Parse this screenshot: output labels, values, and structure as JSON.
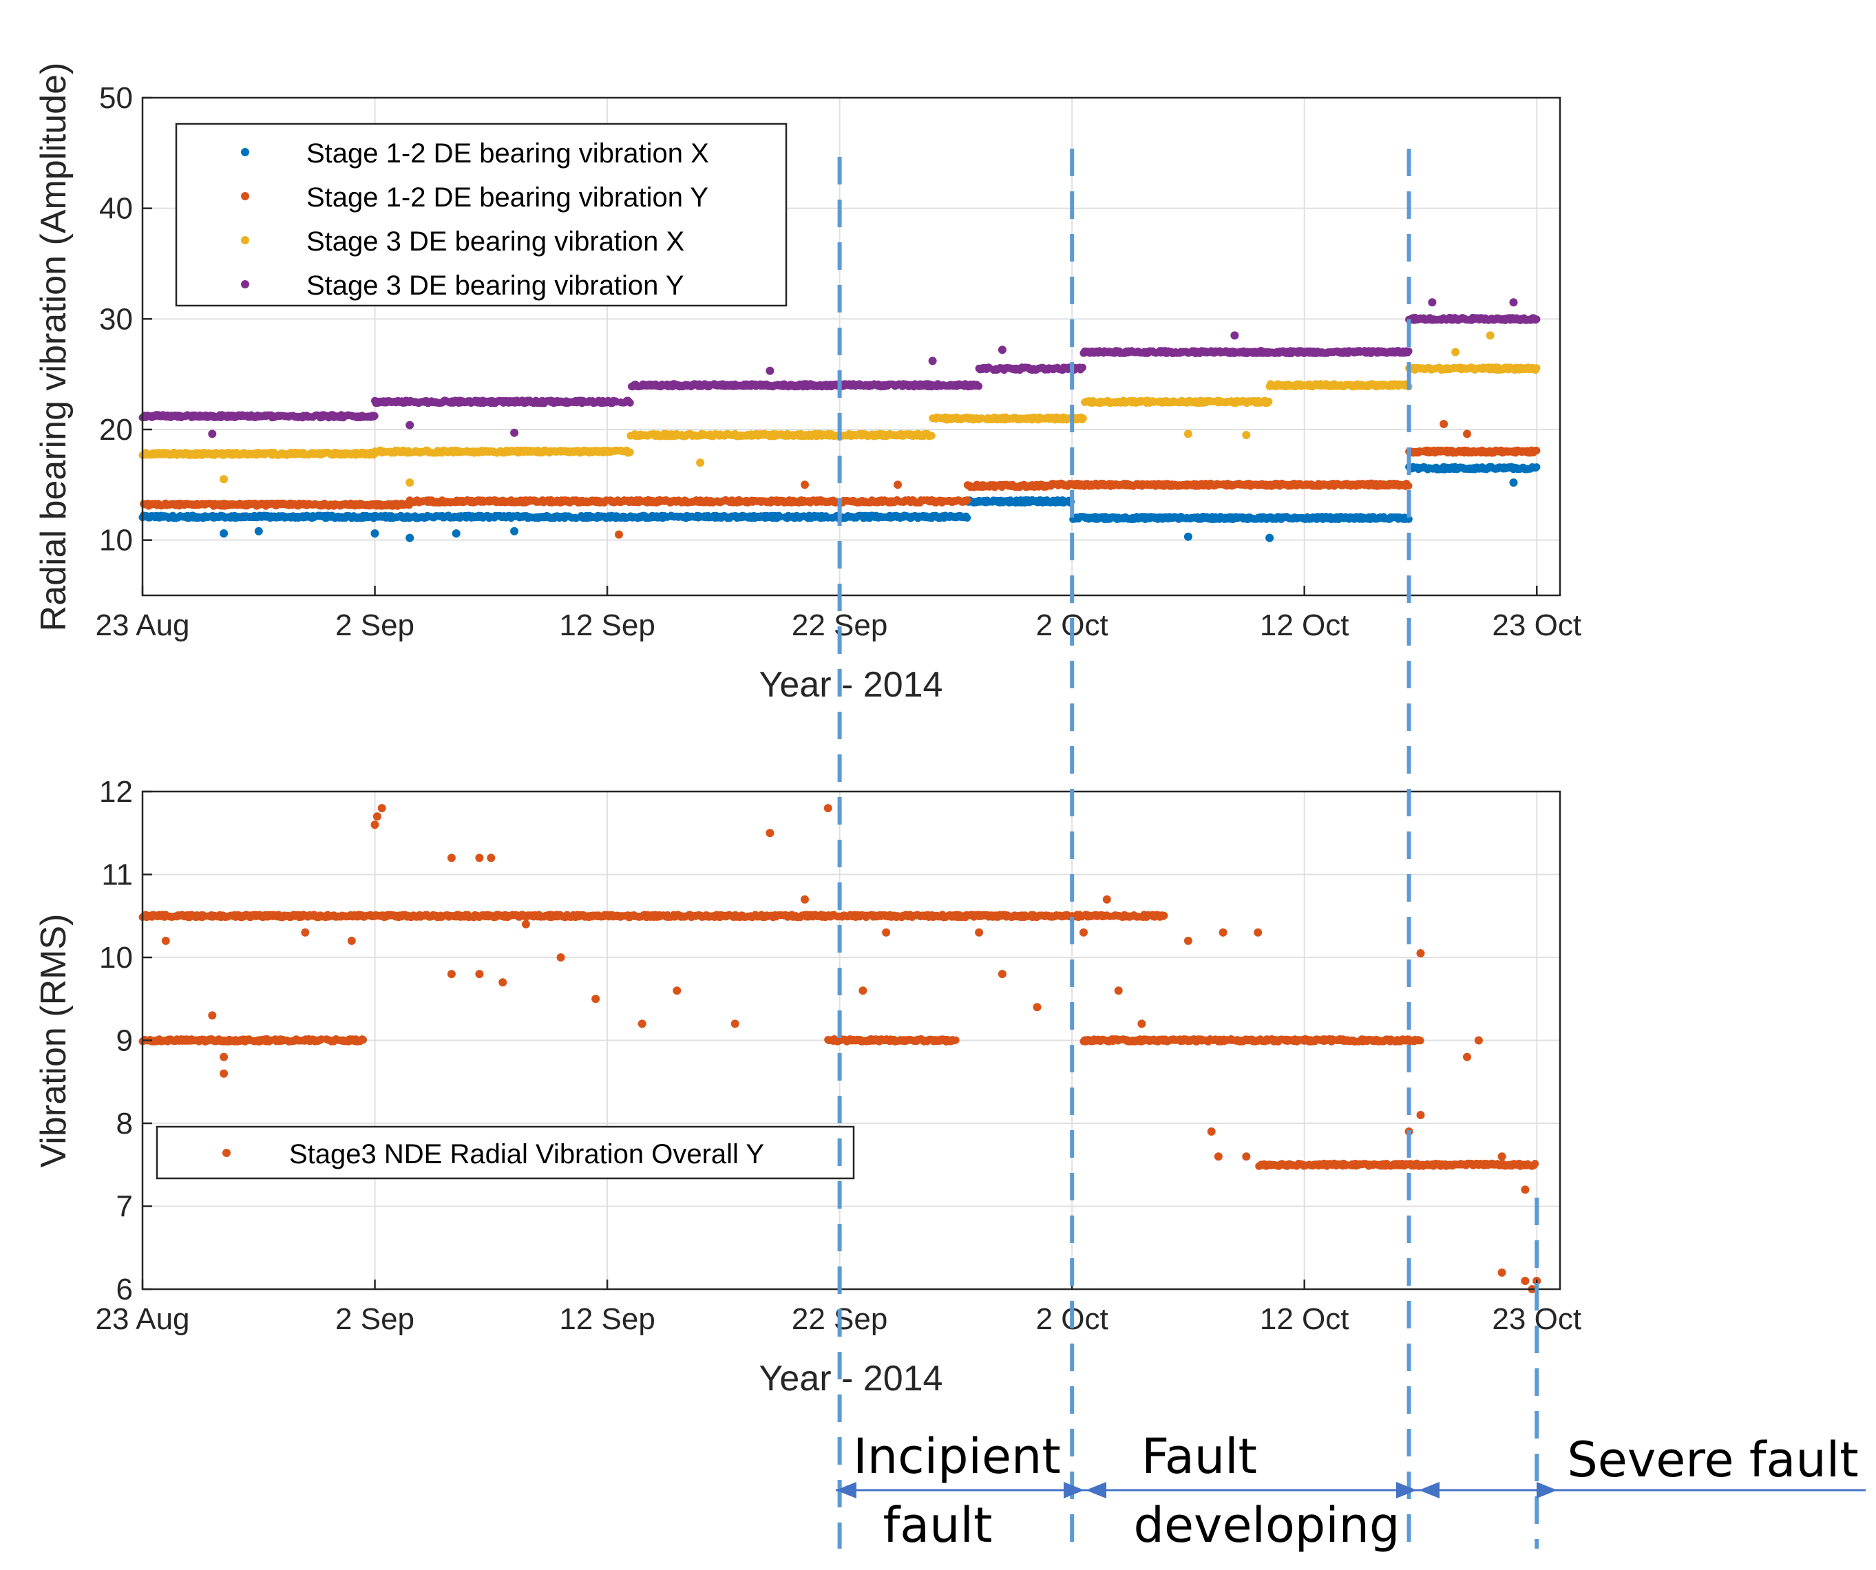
{
  "chart_data": [
    {
      "type": "scatter",
      "xlabel": "Year - 2014",
      "ylabel": "Radial bearing vibration (Amplitude)",
      "xlim": [
        0,
        61
      ],
      "ylim": [
        5,
        50
      ],
      "x_ticks": [
        {
          "label": "23 Aug",
          "value": 0
        },
        {
          "label": "2 Sep",
          "value": 10
        },
        {
          "label": "12 Sep",
          "value": 20
        },
        {
          "label": "22 Sep",
          "value": 30
        },
        {
          "label": "2 Oct",
          "value": 40
        },
        {
          "label": "12 Oct",
          "value": 50
        },
        {
          "label": "23 Oct",
          "value": 60
        }
      ],
      "y_ticks": [
        "10",
        "20",
        "30",
        "40",
        "50"
      ],
      "grid": true,
      "legend_position": "top-left",
      "series": [
        {
          "name": "Stage 1-2 DE bearing vibration X",
          "color": "#0072BD",
          "levels": [
            {
              "from": 0,
              "to": 11.5,
              "value": 12.1
            },
            {
              "from": 11.5,
              "to": 35.5,
              "value": 12.1
            },
            {
              "from": 35.5,
              "to": 40,
              "value": 13.5
            },
            {
              "from": 40,
              "to": 54.5,
              "value": 12.0
            },
            {
              "from": 54.5,
              "to": 60,
              "value": 16.5
            }
          ],
          "outliers": [
            [
              3.5,
              10.6
            ],
            [
              5,
              10.8
            ],
            [
              10,
              10.6
            ],
            [
              11.5,
              10.2
            ],
            [
              13.5,
              10.6
            ],
            [
              16,
              10.8
            ],
            [
              45,
              10.3
            ],
            [
              48.5,
              10.2
            ],
            [
              59,
              15.2
            ]
          ]
        },
        {
          "name": "Stage 1-2 DE bearing vibration Y",
          "color": "#D95319",
          "levels": [
            {
              "from": 0,
              "to": 11.5,
              "value": 13.2
            },
            {
              "from": 11.5,
              "to": 35.5,
              "value": 13.5
            },
            {
              "from": 35.5,
              "to": 39,
              "value": 14.9
            },
            {
              "from": 39,
              "to": 54.5,
              "value": 15.0
            },
            {
              "from": 54.5,
              "to": 60,
              "value": 18.0
            }
          ],
          "outliers": [
            [
              20.5,
              10.5
            ],
            [
              28.5,
              15.0
            ],
            [
              32.5,
              15.0
            ],
            [
              56,
              20.5
            ],
            [
              57,
              19.6
            ]
          ]
        },
        {
          "name": "Stage 3 DE bearing vibration X",
          "color": "#EDB120",
          "levels": [
            {
              "from": 0,
              "to": 10,
              "value": 17.8
            },
            {
              "from": 10,
              "to": 21,
              "value": 18.0
            },
            {
              "from": 21,
              "to": 34,
              "value": 19.5
            },
            {
              "from": 34,
              "to": 40.5,
              "value": 21.0
            },
            {
              "from": 40.5,
              "to": 48.5,
              "value": 22.5
            },
            {
              "from": 48.5,
              "to": 54.5,
              "value": 24.0
            },
            {
              "from": 54.5,
              "to": 60,
              "value": 25.5
            }
          ],
          "outliers": [
            [
              11.5,
              15.2
            ],
            [
              3.5,
              15.5
            ],
            [
              24,
              17.0
            ],
            [
              45,
              19.6
            ],
            [
              47.5,
              19.5
            ],
            [
              56.5,
              27.0
            ],
            [
              58,
              28.5
            ]
          ]
        },
        {
          "name": "Stage 3 DE bearing vibration Y",
          "color": "#7E2F8E",
          "levels": [
            {
              "from": 0,
              "to": 10,
              "value": 21.2
            },
            {
              "from": 10,
              "to": 21,
              "value": 22.5
            },
            {
              "from": 21,
              "to": 36,
              "value": 24.0
            },
            {
              "from": 36,
              "to": 40.5,
              "value": 25.5
            },
            {
              "from": 40.5,
              "to": 48.5,
              "value": 27.0
            },
            {
              "from": 48.5,
              "to": 54.5,
              "value": 27.0
            },
            {
              "from": 54.5,
              "to": 60,
              "value": 30.0
            }
          ],
          "outliers": [
            [
              3,
              19.6
            ],
            [
              11.5,
              20.4
            ],
            [
              16,
              19.7
            ],
            [
              27,
              25.3
            ],
            [
              34,
              26.2
            ],
            [
              37,
              27.2
            ],
            [
              47,
              28.5
            ],
            [
              55.5,
              31.5
            ],
            [
              59,
              31.5
            ]
          ]
        }
      ]
    },
    {
      "type": "scatter",
      "xlabel": "Year - 2014",
      "ylabel": "Vibration (RMS)",
      "xlim": [
        0,
        61
      ],
      "ylim": [
        6,
        12
      ],
      "x_ticks": [
        {
          "label": "23 Aug",
          "value": 0
        },
        {
          "label": "2 Sep",
          "value": 10
        },
        {
          "label": "12 Sep",
          "value": 20
        },
        {
          "label": "22 Sep",
          "value": 30
        },
        {
          "label": "2 Oct",
          "value": 40
        },
        {
          "label": "12 Oct",
          "value": 50
        },
        {
          "label": "23 Oct",
          "value": 60
        }
      ],
      "y_ticks": [
        "6",
        "7",
        "8",
        "9",
        "10",
        "11",
        "12"
      ],
      "grid": true,
      "legend_position": "middle-left",
      "series": [
        {
          "name": "Stage3 NDE Radial Vibration Overall Y",
          "color": "#D95319",
          "levels": [
            {
              "from": 0,
              "to": 44,
              "value": 10.5
            },
            {
              "from": 0,
              "to": 9.5,
              "value": 9.0
            },
            {
              "from": 29.5,
              "to": 35,
              "value": 9.0
            },
            {
              "from": 40.5,
              "to": 55,
              "value": 9.0
            },
            {
              "from": 48,
              "to": 60,
              "value": 7.5
            }
          ],
          "outliers": [
            [
              10,
              11.6
            ],
            [
              10.1,
              11.7
            ],
            [
              10.3,
              11.8
            ],
            [
              13.3,
              11.2
            ],
            [
              14.5,
              11.2
            ],
            [
              15,
              11.2
            ],
            [
              27,
              11.5
            ],
            [
              29.5,
              11.8
            ],
            [
              28.5,
              10.7
            ],
            [
              1,
              10.2
            ],
            [
              3,
              9.3
            ],
            [
              3.5,
              8.8
            ],
            [
              3.5,
              8.6
            ],
            [
              7,
              10.3
            ],
            [
              9,
              10.2
            ],
            [
              13.3,
              9.8
            ],
            [
              14.5,
              9.8
            ],
            [
              15.5,
              9.7
            ],
            [
              16.5,
              10.4
            ],
            [
              18,
              10.0
            ],
            [
              19.5,
              9.5
            ],
            [
              21.5,
              9.2
            ],
            [
              23,
              9.6
            ],
            [
              25.5,
              9.2
            ],
            [
              31,
              9.6
            ],
            [
              32,
              10.3
            ],
            [
              36,
              10.3
            ],
            [
              37,
              9.8
            ],
            [
              38.5,
              9.4
            ],
            [
              40.5,
              10.3
            ],
            [
              41.5,
              10.7
            ],
            [
              42,
              9.6
            ],
            [
              43,
              9.2
            ],
            [
              45,
              10.2
            ],
            [
              46.5,
              10.3
            ],
            [
              48,
              10.3
            ],
            [
              55,
              8.1
            ],
            [
              55,
              10.05
            ],
            [
              57.5,
              9.0
            ],
            [
              57,
              8.8
            ],
            [
              46,
              7.9
            ],
            [
              46.3,
              7.6
            ],
            [
              47.5,
              7.6
            ],
            [
              48.5,
              7.5
            ],
            [
              54.5,
              7.9
            ],
            [
              58.5,
              7.6
            ],
            [
              59.5,
              7.2
            ],
            [
              58.5,
              6.2
            ],
            [
              59.5,
              6.1
            ],
            [
              60,
              6.1
            ],
            [
              59.8,
              6.0
            ]
          ]
        }
      ]
    }
  ],
  "phases": {
    "incipient_line1": "Incipient",
    "incipient_line2": "fault",
    "developing_line1": "Fault",
    "developing_line2": "developing",
    "severe": "Severe fault",
    "boundaries": [
      30,
      40,
      54.5,
      60
    ]
  }
}
